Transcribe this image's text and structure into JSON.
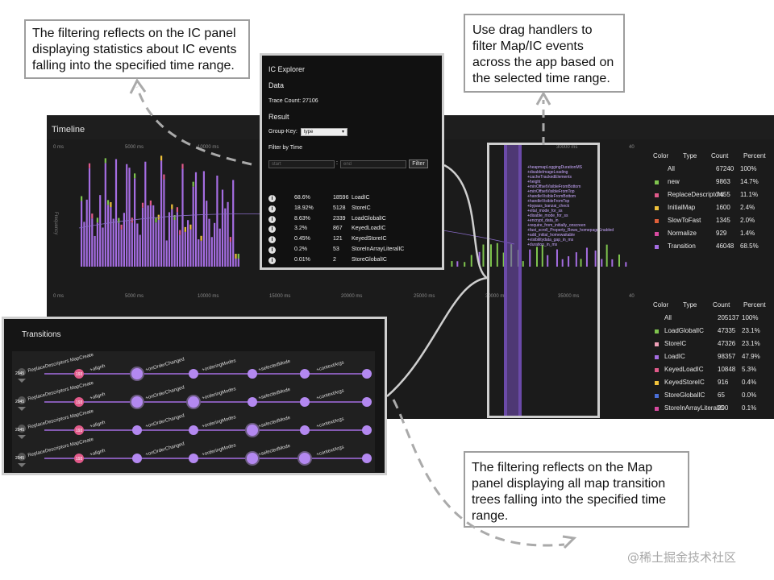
{
  "callouts": {
    "ic_panel": "The filtering reflects on the IC panel displaying statistics about IC events falling into the specified time range.",
    "drag_handlers": "Use drag handlers to filter Map/IC  events across the app based on the selected time range.",
    "map_panel": "The filtering reflects on the Map panel displaying all map transition trees falling into the specified time range."
  },
  "timeline": {
    "title": "Timeline",
    "top_ticks": [
      "0 ms",
      "5000 ms",
      "10000 ms",
      "30000 ms"
    ],
    "top_ticks_partial": [
      "40"
    ],
    "bottom_ticks": [
      "0 ms",
      "5000 ms",
      "10000 ms",
      "15000 ms",
      "20000 ms",
      "25000 ms",
      "30000 ms",
      "35000 ms",
      "40"
    ],
    "ylabel": "Frequency",
    "map_labels": [
      "+heapmapLoggingDurationMS",
      "+disableImageLoading",
      "+cacheTrackedElements",
      "+height",
      "+minOffsetVisibleFromBottom",
      "+minOffsetVisibleFromTop",
      "+handleVisibleFromBottom",
      "+handleVisibleFromTop",
      "+bypass_banzai_check",
      "+vital_mode_for_ss",
      "+disable_mode_for_ss",
      "+encrypt_data_in",
      "+require_from_initially_onscreen",
      "+fast_scroll_Property_Rows_homepageEnabled",
      "+add_initial_homewaitable",
      "+visibilitydata_gap_in_ms",
      "+duration_in_ms"
    ]
  },
  "map_stats": {
    "headers": [
      "Color",
      "Type",
      "Count",
      "Percent"
    ],
    "rows": [
      {
        "color": "",
        "type": "All",
        "count": "67240",
        "percent": "100%"
      },
      {
        "color": "#7fc44e",
        "type": "new",
        "count": "9863",
        "percent": "14.7%"
      },
      {
        "color": "#e15a8a",
        "type": "ReplaceDescriptors",
        "count": "7455",
        "percent": "11.1%"
      },
      {
        "color": "#f0c23b",
        "type": "InitialMap",
        "count": "1600",
        "percent": "2.4%"
      },
      {
        "color": "#e0603a",
        "type": "SlowToFast",
        "count": "1345",
        "percent": "2.0%"
      },
      {
        "color": "#d84aa0",
        "type": "Normalize",
        "count": "929",
        "percent": "1.4%"
      },
      {
        "color": "#a56de2",
        "type": "Transition",
        "count": "46048",
        "percent": "68.5%"
      }
    ]
  },
  "ic_stats": {
    "headers": [
      "Color",
      "Type",
      "Count",
      "Percent"
    ],
    "rows": [
      {
        "color": "",
        "type": "All",
        "count": "205137",
        "percent": "100%"
      },
      {
        "color": "#7fc44e",
        "type": "LoadGlobalIC",
        "count": "47335",
        "percent": "23.1%"
      },
      {
        "color": "#f0a0b8",
        "type": "StoreIC",
        "count": "47326",
        "percent": "23.1%"
      },
      {
        "color": "#a56de2",
        "type": "LoadIC",
        "count": "98357",
        "percent": "47.9%"
      },
      {
        "color": "#e15a8a",
        "type": "KeyedLoadIC",
        "count": "10848",
        "percent": "5.3%"
      },
      {
        "color": "#f0c23b",
        "type": "KeyedStoreIC",
        "count": "916",
        "percent": "0.4%"
      },
      {
        "color": "#4a6fd8",
        "type": "StoreGlobalIC",
        "count": "65",
        "percent": "0.0%"
      },
      {
        "color": "#d84aa0",
        "type": "StoreInArrayLiteralIC",
        "count": "290",
        "percent": "0.1%"
      }
    ]
  },
  "ic_explorer": {
    "title": "IC Explorer",
    "data_heading": "Data",
    "trace_count": "Trace Count: 27106",
    "result_heading": "Result",
    "group_key_label": "Group-Key:",
    "group_key_value": "type",
    "filter_by_time": "Filter by Time",
    "start_placeholder": "start",
    "separator": ":",
    "end_placeholder": "end",
    "filter_button": "Filter",
    "rows": [
      {
        "percent": "68.6%",
        "count": "18596",
        "type": "LoadIC"
      },
      {
        "percent": "18.92%",
        "count": "5128",
        "type": "StoreIC"
      },
      {
        "percent": "8.63%",
        "count": "2339",
        "type": "LoadGlobalIC"
      },
      {
        "percent": "3.2%",
        "count": "867",
        "type": "KeyedLoadIC"
      },
      {
        "percent": "0.45%",
        "count": "121",
        "type": "KeyedStoreIC"
      },
      {
        "percent": "0.2%",
        "count": "53",
        "type": "StoreInArrayLiteralIC"
      },
      {
        "percent": "0.01%",
        "count": "2",
        "type": "StoreGlobalIC"
      }
    ]
  },
  "transitions": {
    "title": "Transitions",
    "root_label": "2045",
    "root_name": "ReplaceDescriptors MapCreate",
    "root_badge": "193",
    "edge_labels": [
      "+alignh",
      "+onOrderChanged",
      "+orderingModes",
      "+selectedMode",
      "+contextArgs"
    ]
  },
  "watermark": "@稀土掘金技术社区"
}
